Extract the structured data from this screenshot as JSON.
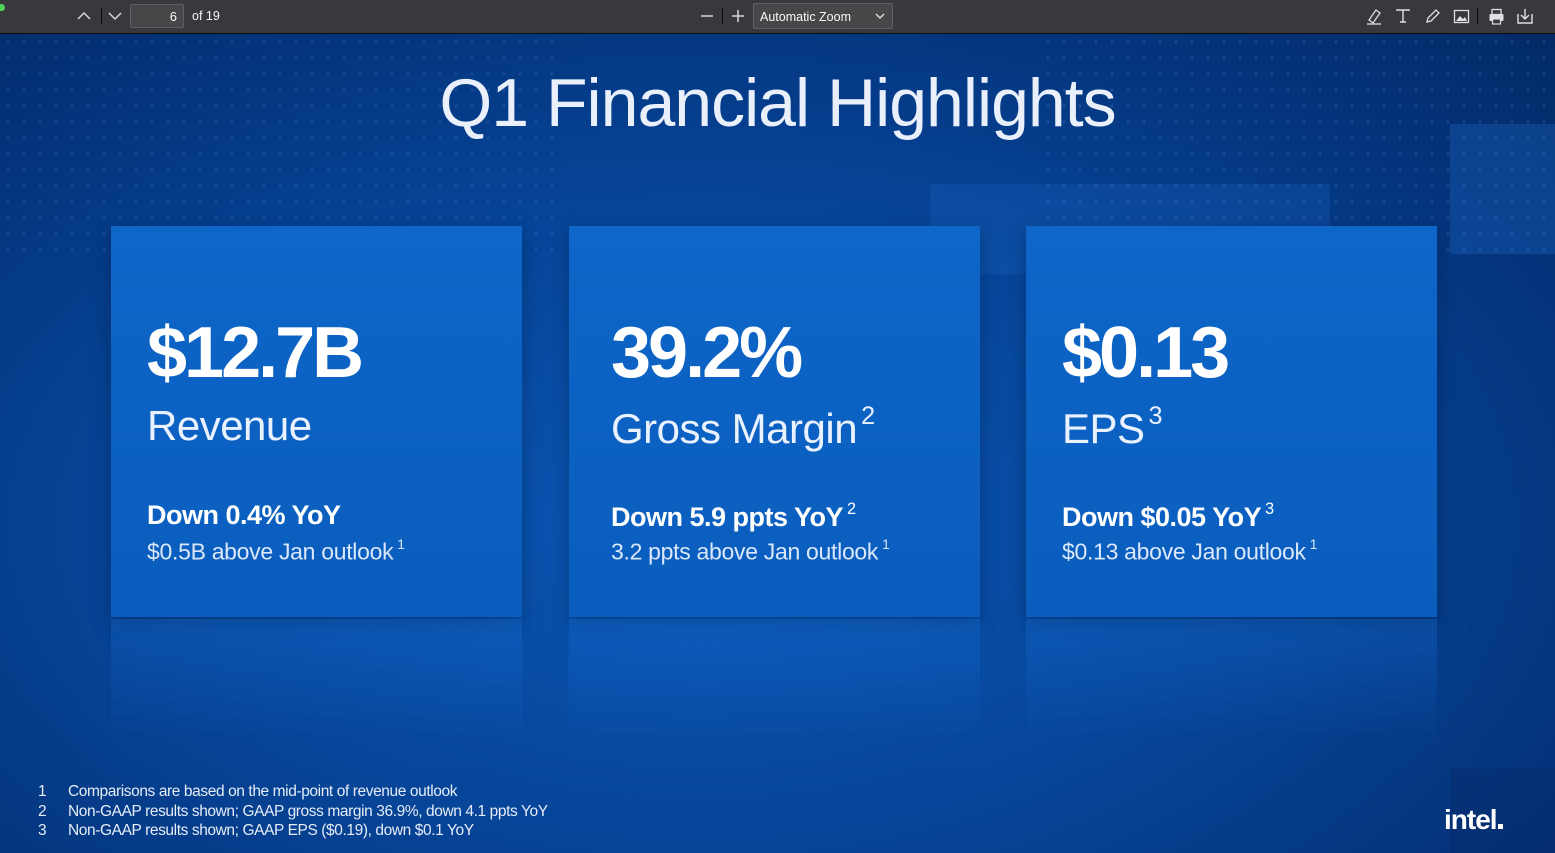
{
  "toolbar": {
    "page_number": "6",
    "page_count": "of 19",
    "zoom": "Automatic Zoom"
  },
  "slide": {
    "title": "Q1 Financial Highlights",
    "cards": [
      {
        "value": "$12.7B",
        "label": "Revenue",
        "label_note": "",
        "sub1": "Down 0.4% YoY",
        "sub1_note": "",
        "sub2": "$0.5B above Jan outlook",
        "sub2_note": "1"
      },
      {
        "value": "39.2%",
        "label": "Gross Margin",
        "label_note": "2",
        "sub1": "Down 5.9 ppts YoY",
        "sub1_note": "2",
        "sub2": "3.2 ppts above Jan outlook",
        "sub2_note": "1"
      },
      {
        "value": "$0.13",
        "label": "EPS",
        "label_note": "3",
        "sub1": "Down $0.05 YoY",
        "sub1_note": "3",
        "sub2": "$0.13 above Jan outlook",
        "sub2_note": "1"
      }
    ],
    "footnotes": [
      {
        "num": "1",
        "text": "Comparisons are based on the mid-point of revenue outlook"
      },
      {
        "num": "2",
        "text": "Non-GAAP results shown; GAAP gross margin 36.9%, down 4.1 ppts YoY"
      },
      {
        "num": "3",
        "text": "Non-GAAP results shown; GAAP EPS ($0.19), down $0.1 YoY"
      }
    ],
    "logo": "intel"
  },
  "colors": {
    "toolbar": "#38383d",
    "slide_bg": "#064599",
    "card": "#0d66c8"
  }
}
